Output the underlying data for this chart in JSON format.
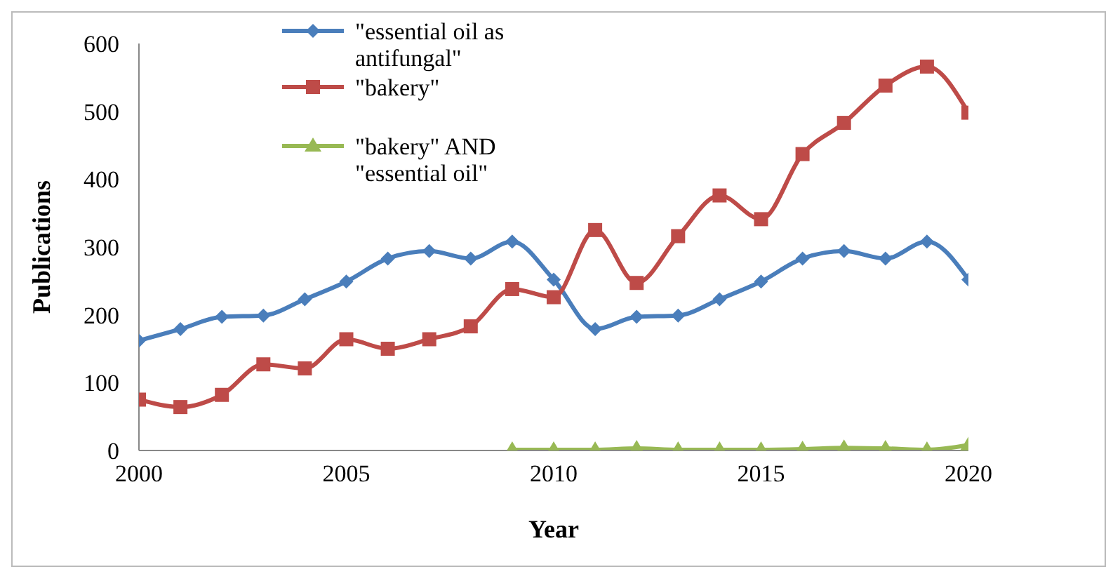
{
  "chart_data": {
    "type": "line",
    "xlabel": "Year",
    "ylabel": "Publications",
    "x": [
      2000,
      2001,
      2002,
      2003,
      2004,
      2005,
      2006,
      2007,
      2008,
      2009,
      2010,
      2011,
      2012,
      2013,
      2014,
      2015,
      2016,
      2017,
      2018,
      2019,
      2020
    ],
    "series": [
      {
        "name": "\"essential oil as antifungal\"",
        "color": "#4a7ebb",
        "marker": "diamond",
        "values": [
          162,
          179,
          197,
          199,
          223,
          249,
          283,
          294,
          283,
          308,
          252,
          179,
          197,
          199,
          223,
          249,
          283,
          294,
          283,
          308,
          252
        ]
      },
      {
        "name": "\"bakery\"",
        "color": "#be4b48",
        "marker": "square",
        "values": [
          75,
          64,
          82,
          127,
          121,
          164,
          150,
          164,
          183,
          238,
          226,
          325,
          247,
          316,
          376,
          341,
          437,
          483,
          538,
          566,
          498
        ]
      },
      {
        "name": "\"bakery\" AND \"essential oil\"",
        "color": "#98b954",
        "marker": "triangle",
        "values": [
          null,
          null,
          null,
          null,
          null,
          null,
          null,
          null,
          null,
          1,
          1,
          1,
          3,
          1,
          1,
          1,
          2,
          4,
          3,
          1,
          8
        ]
      }
    ],
    "xlim": [
      2000,
      2020
    ],
    "xticks": [
      2000,
      2005,
      2010,
      2015,
      2020
    ],
    "ylim": [
      0,
      600
    ],
    "yticks": [
      0,
      100,
      200,
      300,
      400,
      500,
      600
    ],
    "grid": false,
    "legend": "top",
    "line_style": "solid"
  }
}
